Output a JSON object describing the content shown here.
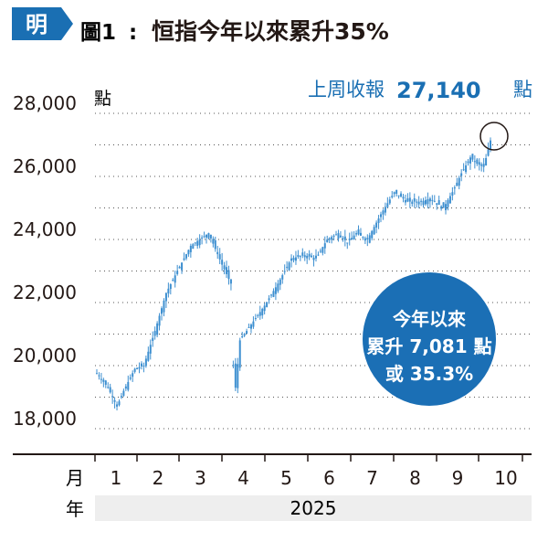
{
  "logo": {
    "char": "明"
  },
  "header": {
    "prefix": "圖1",
    "separator": ":",
    "title": "恒指今年以來累升35%"
  },
  "last_close": {
    "label": "上周收報",
    "value": "27,140",
    "unit": "點"
  },
  "badge": {
    "line1": "今年以來",
    "line2": "累升 7,081 點",
    "line3": "或 35.3%"
  },
  "colors": {
    "accent": "#1a6fb3",
    "bar": "#3d8fd0",
    "badge": "#1b6fb5",
    "grid": "#555555",
    "text": "#231815"
  },
  "chart_data": {
    "type": "candlestick",
    "ylabel_unit": "點",
    "ylim": [
      17000,
      28500
    ],
    "yticks": [
      "28,000",
      "26,000",
      "24,000",
      "22,000",
      "20,000",
      "18,000"
    ],
    "ytick_values": [
      28000,
      26000,
      24000,
      22000,
      20000,
      18000
    ],
    "x_month_label": "月",
    "x_year_label": "年",
    "year": "2025",
    "months": [
      "1",
      "2",
      "3",
      "4",
      "5",
      "6",
      "7",
      "8",
      "9",
      "10"
    ],
    "waypoints": [
      [
        0,
        19760
      ],
      [
        5,
        19300
      ],
      [
        9,
        18700
      ],
      [
        12,
        19200
      ],
      [
        17,
        19900
      ],
      [
        21,
        20000
      ],
      [
        26,
        21100
      ],
      [
        31,
        22300
      ],
      [
        36,
        23000
      ],
      [
        42,
        23800
      ],
      [
        46,
        24000
      ],
      [
        50,
        24200
      ],
      [
        53,
        23700
      ],
      [
        56,
        23200
      ],
      [
        60,
        22600
      ],
      [
        61,
        20000
      ],
      [
        62,
        19300
      ],
      [
        64,
        20800
      ],
      [
        70,
        21400
      ],
      [
        75,
        21900
      ],
      [
        81,
        22600
      ],
      [
        87,
        23400
      ],
      [
        93,
        23500
      ],
      [
        98,
        23400
      ],
      [
        103,
        24000
      ],
      [
        108,
        24200
      ],
      [
        112,
        23900
      ],
      [
        116,
        24200
      ],
      [
        121,
        24000
      ],
      [
        127,
        24800
      ],
      [
        133,
        25500
      ],
      [
        139,
        25200
      ],
      [
        145,
        25200
      ],
      [
        149,
        25300
      ],
      [
        155,
        25000
      ],
      [
        159,
        25500
      ],
      [
        163,
        26100
      ],
      [
        167,
        26600
      ],
      [
        170,
        26400
      ],
      [
        173,
        26300
      ],
      [
        176,
        27140
      ]
    ],
    "gap_after_index": 60,
    "highlight_index": 176
  }
}
